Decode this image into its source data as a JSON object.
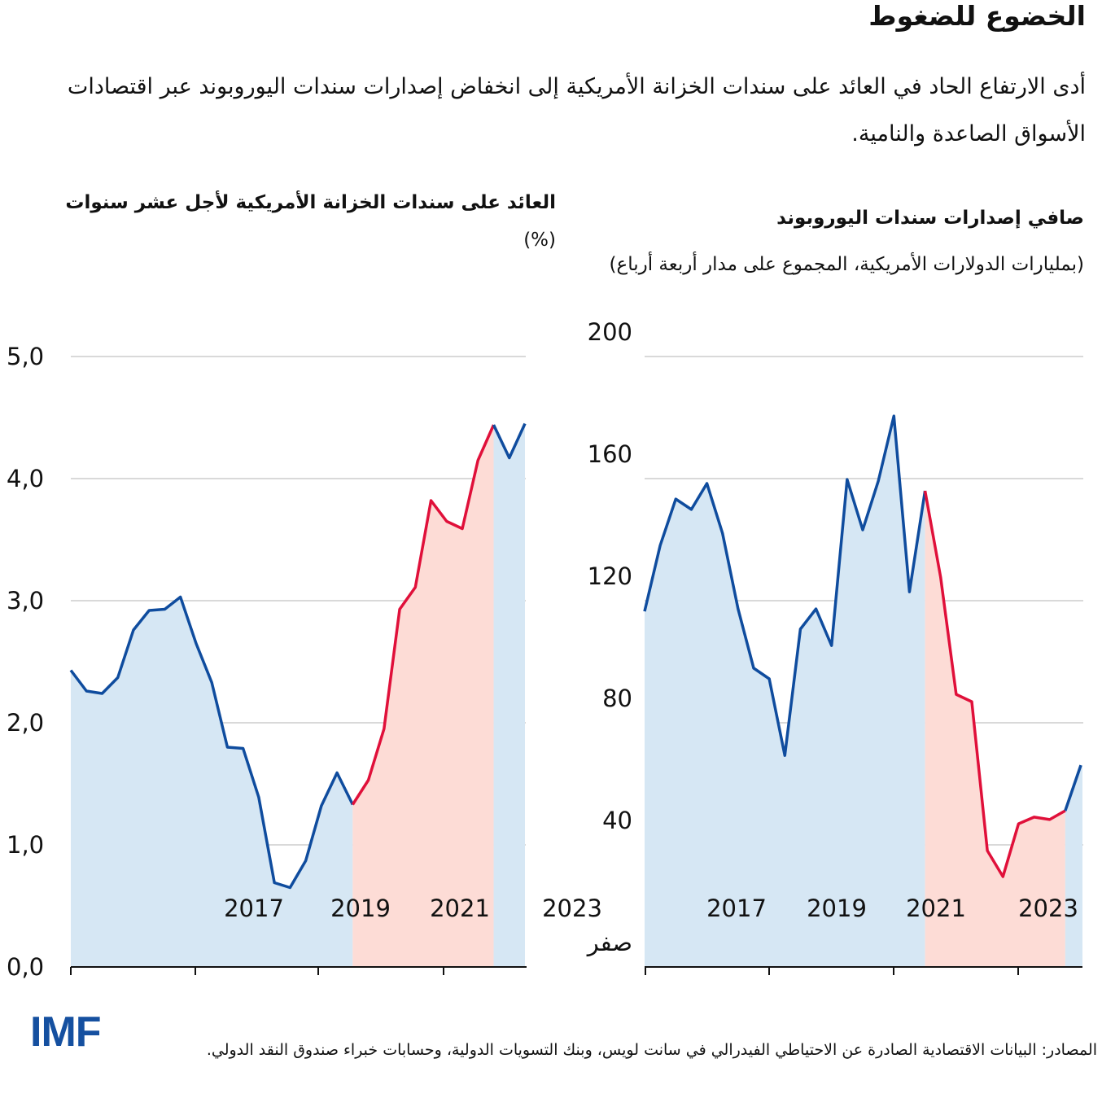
{
  "title": "الخضوع للضغوط",
  "subtitle": "أدى الارتفاع الحاد في العائد على سندات الخزانة الأمريكية إلى انخفاض إصدارات سندات اليوروبوند عبر اقتصادات الأسواق الصاعدة والنامية.",
  "source": "المصادر: البيانات الاقتصادية الصادرة عن الاحتياطي الفيدرالي في سانت لويس، وبنك التسويات الدولية، وحسابات خبراء صندوق النقد الدولي.",
  "logo": "IMF",
  "colors": {
    "line_blue": "#0f4c9e",
    "line_red": "#e0103a",
    "fill_blue": "#d6e7f4",
    "fill_red": "#fddcd6",
    "grid": "#d9d9d9"
  },
  "chart_data": [
    {
      "type": "line",
      "title": "العائد على سندات الخزانة الأمريكية لأجل عشر سنوات",
      "unit": "(%)",
      "ylim": [
        0,
        5
      ],
      "y_ticks": [
        "0,0",
        "1,0",
        "2,0",
        "3,0",
        "4,0",
        "5,0"
      ],
      "x_tick_labels": [
        "2017",
        "2019",
        "2021",
        "2023"
      ],
      "grid": true,
      "values": [
        2.43,
        2.26,
        2.24,
        2.37,
        2.76,
        2.92,
        2.93,
        3.03,
        2.65,
        2.33,
        1.8,
        1.79,
        1.39,
        0.69,
        0.65,
        0.87,
        1.32,
        1.59,
        1.33,
        1.53,
        1.95,
        2.93,
        3.11,
        3.82,
        3.65,
        3.59,
        4.15,
        4.44,
        4.17,
        4.45
      ],
      "highlight_range_index": [
        18,
        27
      ]
    },
    {
      "type": "line",
      "title": "صافي إصدارات سندات اليوروبوند",
      "unit": "(بمليارات الدولارات الأمريكية، المجموع على مدار أربعة أرباع)",
      "ylim": [
        0,
        200
      ],
      "y_ticks": [
        "صفر",
        "40",
        "80",
        "120",
        "160",
        "200"
      ],
      "x_tick_labels": [
        "2017",
        "2019",
        "2021",
        "2023"
      ],
      "grid": true,
      "values": [
        116.5,
        138.1,
        153.3,
        149.9,
        158.4,
        142.1,
        117.3,
        97.9,
        94.4,
        69.3,
        110.7,
        117.3,
        105.3,
        159.7,
        143.2,
        159.2,
        180.5,
        122.9,
        156.0,
        127.7,
        89.3,
        86.9,
        38.1,
        29.6,
        46.9,
        49.1,
        48.3,
        51.2,
        66.1
      ],
      "highlight_range_index": [
        18,
        27
      ]
    }
  ]
}
